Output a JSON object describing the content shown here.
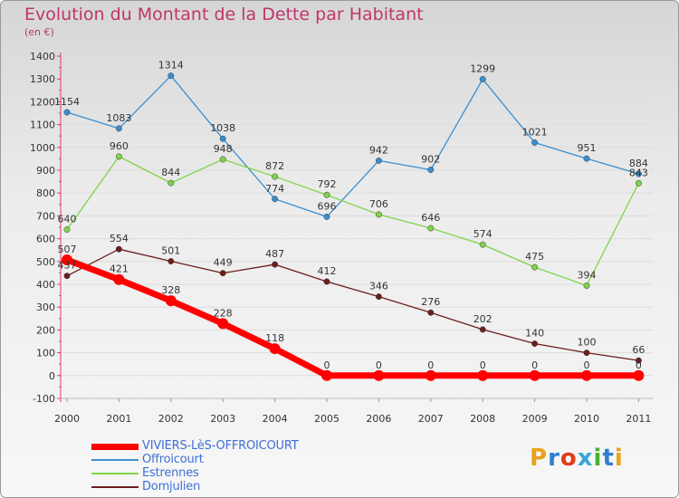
{
  "header": {
    "title": "Evolution du Montant de la Dette par Habitant",
    "unit": "(en €)"
  },
  "logo": {
    "text": "Proxiti",
    "letter_colors": [
      "#e9a21a",
      "#2f7fd0",
      "#e23b1a",
      "#3aa6d6",
      "#49b030",
      "#2f7fd0",
      "#e9a21a"
    ]
  },
  "chart_data": {
    "type": "line",
    "title": "Evolution du Montant de la Dette par Habitant",
    "ylabel": "(en €)",
    "xlabel": "",
    "x": [
      "2000",
      "2001",
      "2002",
      "2003",
      "2004",
      "2005",
      "2006",
      "2007",
      "2008",
      "2009",
      "2010",
      "2011"
    ],
    "ylim": [
      -100,
      1400
    ],
    "yticks": [
      -100,
      0,
      100,
      200,
      300,
      400,
      500,
      600,
      700,
      800,
      900,
      1000,
      1100,
      1200,
      1300,
      1400
    ],
    "grid": true,
    "legend_position": "bottom-left",
    "series": [
      {
        "name": "VIVIERS-LèS-OFFROICOURT",
        "color": "#ff0000",
        "values": [
          507,
          421,
          328,
          228,
          118,
          0,
          0,
          0,
          0,
          0,
          0,
          0
        ]
      },
      {
        "name": "Offroicourt",
        "color": "#3a8fd0",
        "values": [
          1154,
          1083,
          1314,
          1038,
          774,
          696,
          942,
          902,
          1299,
          1021,
          951,
          884
        ]
      },
      {
        "name": "Estrennes",
        "color": "#7fd44a",
        "values": [
          640,
          960,
          844,
          948,
          872,
          792,
          706,
          646,
          574,
          475,
          394,
          843
        ]
      },
      {
        "name": "Domjulien",
        "color": "#6b1e1e",
        "values": [
          437,
          554,
          501,
          449,
          487,
          412,
          346,
          276,
          202,
          140,
          100,
          66
        ]
      }
    ]
  }
}
